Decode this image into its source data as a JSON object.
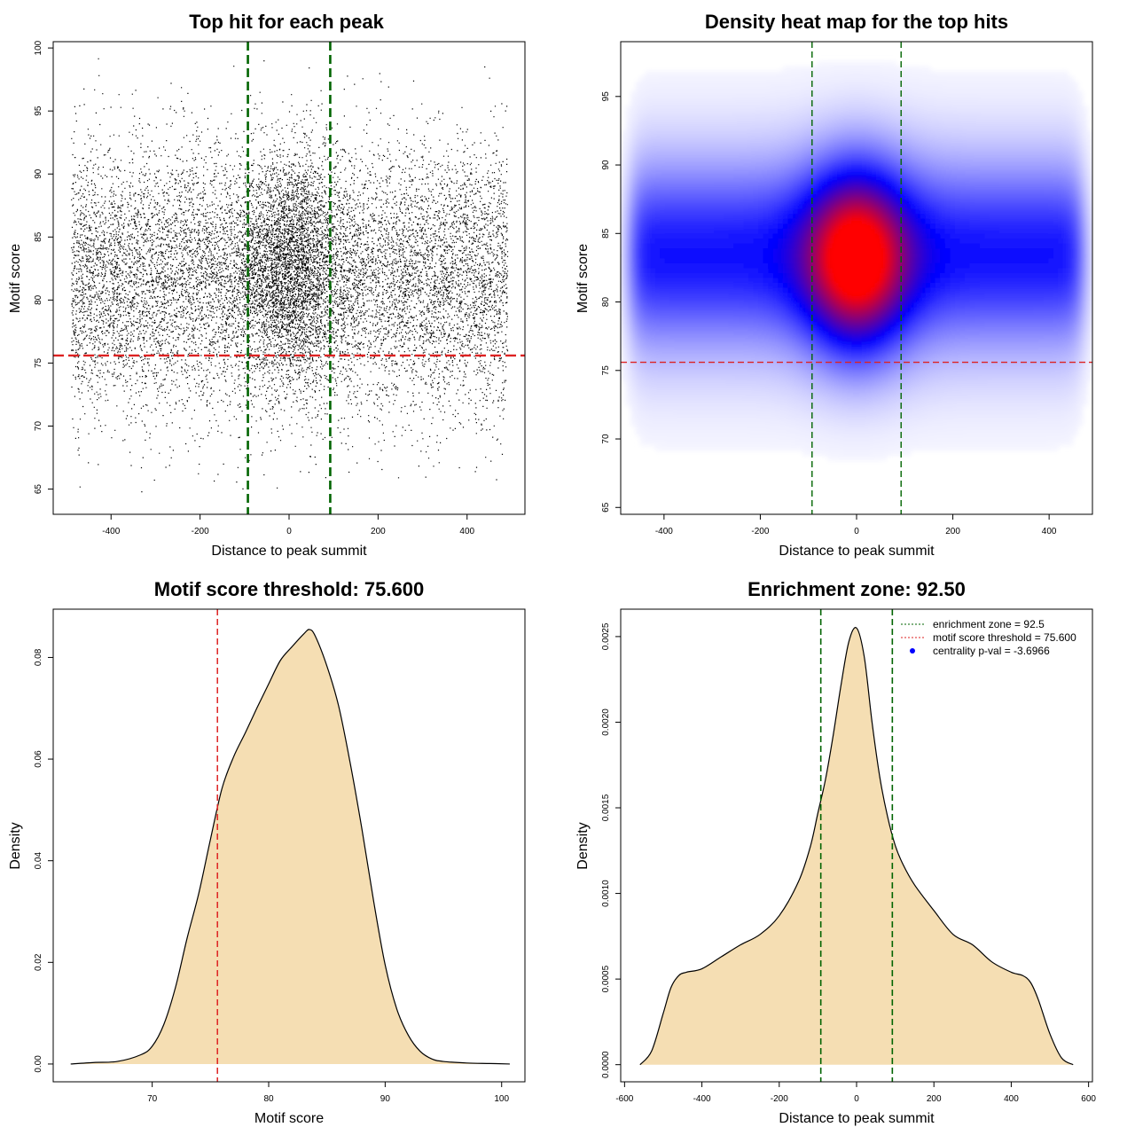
{
  "colors": {
    "frame": "#000000",
    "enrichment_line": "#006400",
    "threshold_line": "#dd2222",
    "density_fill": "#f5deb3",
    "heat_low": "#ffffff",
    "heat_mid": "#0000ff",
    "heat_high": "#ff0000"
  },
  "chart_data": [
    {
      "id": "scatter",
      "type": "scatter",
      "title": "Top hit for each peak",
      "xlabel": "Distance to peak summit",
      "ylabel": "Motif score",
      "xlim": [
        -530,
        530
      ],
      "ylim": [
        63,
        100.5
      ],
      "xticks": [
        -400,
        -200,
        0,
        200,
        400
      ],
      "yticks": [
        65,
        70,
        75,
        80,
        85,
        90,
        95,
        100
      ],
      "vlines": [
        -92.5,
        92.5
      ],
      "hline": 75.6,
      "n_points": 14000,
      "x_range": [
        -490,
        490
      ],
      "center_y": 82,
      "central_cluster": {
        "x_center": 0,
        "x_sd": 55,
        "y_center": 82.5,
        "y_sd": 4.5
      }
    },
    {
      "id": "heatmap",
      "type": "heatmap",
      "title": "Density heat map for the top hits",
      "xlabel": "Distance to peak summit",
      "ylabel": "Motif score",
      "xlim": [
        -490,
        490
      ],
      "ylim": [
        64.5,
        99
      ],
      "xticks": [
        -400,
        -200,
        0,
        200,
        400
      ],
      "yticks": [
        65,
        70,
        75,
        80,
        85,
        90,
        95
      ],
      "vlines": [
        -92.5,
        92.5
      ],
      "hline": 75.6,
      "peak": {
        "x": 0,
        "y": 83
      }
    },
    {
      "id": "score_density",
      "type": "area",
      "title": "Motif score threshold: 75.600",
      "xlabel": "Motif score",
      "ylabel": "Density",
      "xlim": [
        61.5,
        102
      ],
      "ylim": [
        -0.0035,
        0.0895
      ],
      "xticks": [
        70,
        80,
        90,
        100
      ],
      "yticks": [
        0.0,
        0.02,
        0.04,
        0.06,
        0.08
      ],
      "ytick_labels": [
        "0.00",
        "0.02",
        "0.04",
        "0.06",
        "0.08"
      ],
      "vline": 75.6,
      "x": [
        63,
        65,
        67,
        69,
        70,
        71,
        72,
        73,
        74,
        75,
        76,
        77,
        78,
        79,
        80,
        81,
        82,
        83,
        83.5,
        84,
        85,
        86,
        87,
        88,
        89,
        90,
        91,
        92,
        93,
        94,
        95,
        97,
        99,
        100.7
      ],
      "y": [
        0.0,
        0.0003,
        0.0005,
        0.0018,
        0.0035,
        0.0078,
        0.0151,
        0.0248,
        0.0336,
        0.0442,
        0.0543,
        0.0605,
        0.0652,
        0.0701,
        0.0748,
        0.0794,
        0.0821,
        0.0846,
        0.0855,
        0.0842,
        0.0783,
        0.0705,
        0.0592,
        0.0463,
        0.0322,
        0.0195,
        0.0108,
        0.0056,
        0.0025,
        0.001,
        0.0005,
        0.0002,
        0.0001,
        0.0
      ]
    },
    {
      "id": "distance_density",
      "type": "area",
      "title": "Enrichment zone: 92.50",
      "xlabel": "Distance to peak summit",
      "ylabel": "Density",
      "xlim": [
        -610,
        610
      ],
      "ylim": [
        -0.0001,
        0.00266
      ],
      "xticks": [
        -600,
        -400,
        -200,
        0,
        200,
        400,
        600
      ],
      "yticks": [
        0.0,
        0.0005,
        0.001,
        0.0015,
        0.002,
        0.0025
      ],
      "ytick_labels": [
        "0.0000",
        "0.0005",
        "0.0010",
        "0.0015",
        "0.0020",
        "0.0025"
      ],
      "vlines": [
        -92.5,
        92.5
      ],
      "x": [
        -560,
        -530,
        -500,
        -480,
        -460,
        -440,
        -400,
        -350,
        -300,
        -250,
        -200,
        -150,
        -120,
        -100,
        -80,
        -60,
        -40,
        -20,
        0,
        20,
        40,
        60,
        80,
        100,
        120,
        150,
        200,
        250,
        300,
        350,
        400,
        430,
        450,
        470,
        500,
        530,
        560
      ],
      "y": [
        0.0,
        8e-05,
        0.0003,
        0.00045,
        0.00052,
        0.00054,
        0.00056,
        0.00063,
        0.0007,
        0.00076,
        0.00087,
        0.00107,
        0.00127,
        0.00147,
        0.00167,
        0.00193,
        0.00222,
        0.00247,
        0.00255,
        0.00238,
        0.002,
        0.00168,
        0.00145,
        0.00128,
        0.00117,
        0.00105,
        0.0009,
        0.00076,
        0.0007,
        0.0006,
        0.00054,
        0.00052,
        0.00048,
        0.00038,
        0.00018,
        4e-05,
        0.0
      ],
      "legend": {
        "position": "top-right",
        "items": [
          {
            "label": "enrichment zone = 92.5",
            "style": "dotted-line",
            "color": "#006400"
          },
          {
            "label": "motif score threshold = 75.600",
            "style": "dotted-line",
            "color": "#dd2222"
          },
          {
            "label": "centrality p-val = -3.6966",
            "style": "point",
            "color": "#0000ff"
          }
        ]
      }
    }
  ]
}
